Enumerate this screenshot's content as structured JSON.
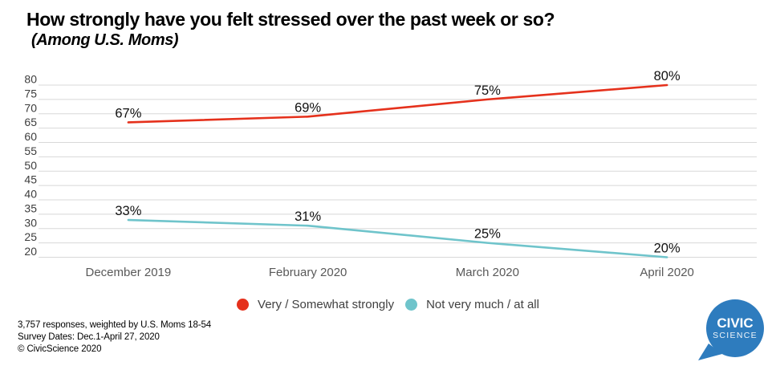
{
  "chart_data": {
    "type": "line",
    "title": "How strongly have you felt stressed over the past week or so?",
    "subtitle": "(Among U.S. Moms)",
    "categories": [
      "December 2019",
      "February 2020",
      "March 2020",
      "April 2020"
    ],
    "series": [
      {
        "name": "Very / Somewhat strongly",
        "color": "#e5311c",
        "values": [
          67,
          69,
          75,
          80
        ]
      },
      {
        "name": "Not very much / at all",
        "color": "#6fc4cb",
        "values": [
          33,
          31,
          25,
          20
        ]
      }
    ],
    "ylim": [
      20,
      80
    ],
    "ytick_step": 5,
    "yticks": [
      20,
      25,
      30,
      35,
      40,
      45,
      50,
      55,
      60,
      65,
      70,
      75,
      80
    ],
    "grid": true,
    "legend_position": "bottom",
    "value_suffix": "%",
    "xlabel": "",
    "ylabel": ""
  },
  "footer": {
    "line1": "3,757 responses, weighted by U.S. Moms 18-54",
    "line2": "Survey Dates: Dec.1-April 27, 2020",
    "line3": "© CivicScience 2020"
  },
  "logo": {
    "line1": "CIVIC",
    "line2": "SCIENCE",
    "color": "#2e7cbe"
  }
}
